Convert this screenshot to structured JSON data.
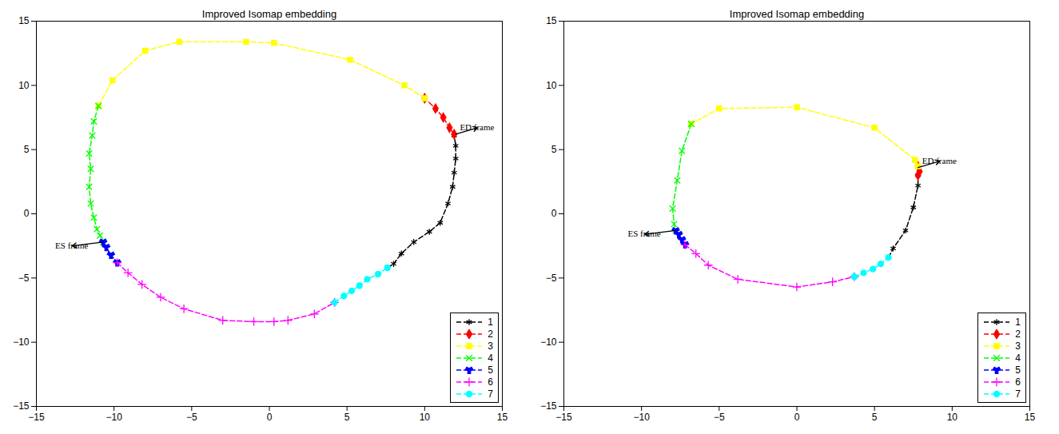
{
  "chart_data": [
    {
      "type": "line",
      "title": "Improved Isomap embedding",
      "xlim": [
        -15,
        15
      ],
      "ylim": [
        -15,
        15
      ],
      "xticks": [
        -15,
        -10,
        -5,
        0,
        5,
        10,
        15
      ],
      "yticks": [
        -15,
        -10,
        -5,
        0,
        5,
        10,
        15
      ],
      "grid": false,
      "legend": "lower right",
      "series": [
        {
          "name": "1",
          "color": "#000000",
          "marker": "asterisk",
          "line_style": "dashed",
          "x": [
            7.6,
            8,
            8.5,
            9.3,
            10.3,
            11,
            11.5,
            11.8,
            11.9,
            12,
            12,
            11.9
          ],
          "values": [
            -4.2,
            -3.9,
            -3.1,
            -2.2,
            -1.4,
            -0.7,
            0.8,
            2.1,
            3.2,
            4.3,
            5.3,
            6.1
          ]
        },
        {
          "name": "2",
          "color": "#ff0000",
          "marker": "diamond",
          "line_style": "dashed",
          "x": [
            11.9,
            11.6,
            11.2,
            10.7,
            10
          ],
          "values": [
            6.2,
            6.7,
            7.5,
            8.2,
            9
          ]
        },
        {
          "name": "3",
          "color": "#ffff00",
          "marker": "square",
          "line_style": "dashed",
          "x": [
            10,
            8.7,
            5.2,
            0.3,
            -1.5,
            -5.8,
            -8,
            -10.1,
            -11
          ],
          "values": [
            9,
            10,
            12,
            13.3,
            13.4,
            13.4,
            12.7,
            10.4,
            8.4
          ]
        },
        {
          "name": "4",
          "color": "#00ff00",
          "marker": "times",
          "line_style": "dashed",
          "x": [
            -11,
            -11.3,
            -11.4,
            -11.6,
            -11.5,
            -11.6,
            -11.5,
            -11.3,
            -11.1,
            -10.9,
            -10.7
          ],
          "values": [
            8.4,
            7.2,
            6.1,
            4.7,
            3.5,
            2.1,
            0.8,
            -0.3,
            -1.2,
            -1.7,
            -2.2
          ]
        },
        {
          "name": "5",
          "color": "#0000ff",
          "marker": "wye",
          "line_style": "dashed",
          "x": [
            -10.7,
            -10.5,
            -10.2,
            -9.8
          ],
          "values": [
            -2.2,
            -2.6,
            -3.2,
            -3.8
          ]
        },
        {
          "name": "6",
          "color": "#ff00ff",
          "marker": "plus",
          "line_style": "dashed",
          "x": [
            -9.8,
            -9.1,
            -8.2,
            -7,
            -5.5,
            -3,
            -1,
            0.3,
            1.2,
            2.9,
            4.2
          ],
          "values": [
            -3.8,
            -4.6,
            -5.5,
            -6.5,
            -7.4,
            -8.3,
            -8.4,
            -8.4,
            -8.3,
            -7.8,
            -6.9
          ]
        },
        {
          "name": "7",
          "color": "#00ffff",
          "marker": "circle",
          "line_style": "dashed",
          "x": [
            4.2,
            4.8,
            5.3,
            5.8,
            6.3,
            7,
            7.6
          ],
          "values": [
            -6.9,
            -6.4,
            -6,
            -5.6,
            -5.1,
            -4.7,
            -4.2
          ]
        }
      ],
      "annotations": [
        {
          "text": "ED frame",
          "x": 12,
          "y": 6.2
        },
        {
          "text": "ES frame",
          "x": -10.7,
          "y": -2.2
        }
      ]
    },
    {
      "type": "line",
      "title": "Improved Isomap embedding",
      "xlim": [
        -15,
        15
      ],
      "ylim": [
        -15,
        15
      ],
      "xticks": [
        -15,
        -10,
        -5,
        0,
        5,
        10,
        15
      ],
      "yticks": [
        -15,
        -10,
        -5,
        0,
        5,
        10,
        15
      ],
      "grid": false,
      "legend": "lower right",
      "series": [
        {
          "name": "1",
          "color": "#000000",
          "marker": "asterisk",
          "line_style": "dashed",
          "x": [
            5.9,
            6.2,
            7,
            7.5,
            7.8,
            7.8
          ],
          "values": [
            -3.4,
            -2.7,
            -1.3,
            0.5,
            2.2,
            3.0
          ]
        },
        {
          "name": "2",
          "color": "#ff0000",
          "marker": "diamond",
          "line_style": "dashed",
          "x": [
            7.8,
            7.9,
            7.8
          ],
          "values": [
            3.0,
            3.3,
            3.7
          ]
        },
        {
          "name": "3",
          "color": "#ffff00",
          "marker": "square",
          "line_style": "dashed",
          "x": [
            7.8,
            7.6,
            5,
            0,
            -5,
            -6.8
          ],
          "values": [
            3.7,
            4.2,
            6.7,
            8.3,
            8.2,
            7
          ]
        },
        {
          "name": "4",
          "color": "#00ff00",
          "marker": "times",
          "line_style": "dashed",
          "x": [
            -6.8,
            -7.4,
            -7.7,
            -8,
            -7.9,
            -7.8
          ],
          "values": [
            7,
            4.9,
            2.6,
            0.4,
            -0.8,
            -1.3
          ]
        },
        {
          "name": "5",
          "color": "#0000ff",
          "marker": "wye",
          "line_style": "dashed",
          "x": [
            -7.8,
            -7.6,
            -7.4,
            -7.2
          ],
          "values": [
            -1.3,
            -1.6,
            -2,
            -2.4
          ]
        },
        {
          "name": "6",
          "color": "#ff00ff",
          "marker": "plus",
          "line_style": "dashed",
          "x": [
            -7.2,
            -6.5,
            -5.7,
            -3.8,
            0,
            2.3,
            3.7
          ],
          "values": [
            -2.4,
            -3.1,
            -4,
            -5.1,
            -5.7,
            -5.3,
            -4.9
          ]
        },
        {
          "name": "7",
          "color": "#00ffff",
          "marker": "circle",
          "line_style": "dashed",
          "x": [
            3.7,
            4.3,
            4.9,
            5.4,
            5.9
          ],
          "values": [
            -4.9,
            -4.6,
            -4.3,
            -3.9,
            -3.4
          ]
        }
      ],
      "annotations": [
        {
          "text": "ED frame",
          "x": 7.8,
          "y": 3.6
        },
        {
          "text": "ES frame",
          "x": -7.8,
          "y": -1.3
        }
      ]
    }
  ]
}
